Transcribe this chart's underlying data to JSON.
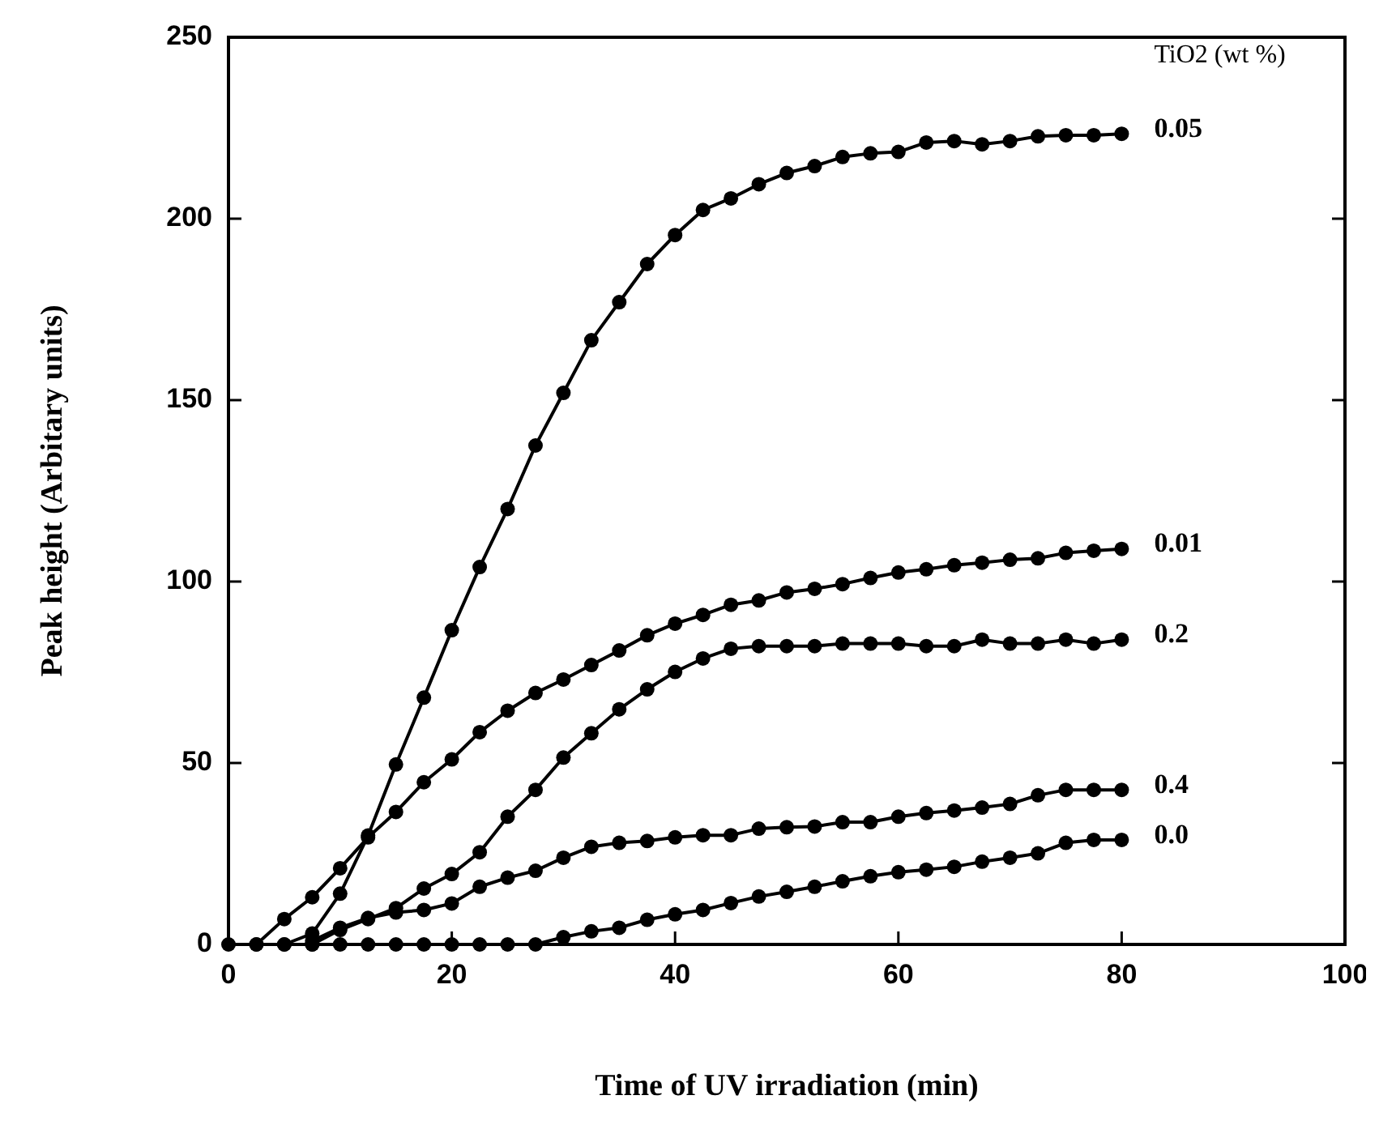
{
  "chart_data": {
    "type": "line",
    "xlabel": "Time of UV irradiation (min)",
    "ylabel": "Peak height (Arbitary units)",
    "legend_title": "TiO2 (wt %)",
    "xlim": [
      0,
      100
    ],
    "ylim": [
      0,
      250
    ],
    "xticks": [
      0,
      20,
      40,
      60,
      80,
      100
    ],
    "yticks": [
      0,
      50,
      100,
      150,
      200,
      250
    ],
    "marker": "circle",
    "line_style": "solid",
    "grid": false,
    "series": [
      {
        "name": "0.05",
        "color": "#000000",
        "x": [
          5,
          7.5,
          10,
          12.5,
          15,
          17.5,
          20,
          22.5,
          25,
          27.5,
          30,
          32.5,
          35,
          37.5,
          40,
          42.5,
          45,
          47.5,
          50,
          52.5,
          55,
          57.5,
          60,
          62.5,
          65,
          67.5,
          70,
          72.5,
          75,
          77.5,
          80
        ],
        "values": [
          0,
          3,
          14,
          30,
          49.6,
          68,
          86.6,
          104,
          120,
          137.5,
          152,
          166.5,
          177,
          187.5,
          195.5,
          202.4,
          205.6,
          209.5,
          212.6,
          214.5,
          217,
          218,
          218.4,
          221,
          221.4,
          220.5,
          221.4,
          222.7,
          223,
          223,
          223.4
        ]
      },
      {
        "name": "0.01",
        "color": "#000000",
        "x": [
          2.5,
          5,
          7.5,
          10,
          12.5,
          15,
          17.5,
          20,
          22.5,
          25,
          27.5,
          30,
          32.5,
          35,
          37.5,
          40,
          42.5,
          45,
          47.5,
          50,
          52.5,
          55,
          57.5,
          60,
          62.5,
          65,
          67.5,
          70,
          72.5,
          75,
          77.5,
          80
        ],
        "values": [
          0,
          7,
          13,
          21,
          29.5,
          36.5,
          44.7,
          51,
          58.5,
          64.4,
          69.3,
          73,
          77,
          81,
          85.2,
          88.4,
          90.8,
          93.6,
          94.8,
          97,
          98,
          99.3,
          101,
          102.5,
          103.4,
          104.5,
          105.2,
          106,
          106.4,
          107.9,
          108.5,
          109
        ]
      },
      {
        "name": "0.2",
        "color": "#000000",
        "x": [
          7.5,
          10,
          12.5,
          15,
          17.5,
          20,
          22.5,
          25,
          27.5,
          30,
          32.5,
          35,
          37.5,
          40,
          42.5,
          45,
          47.5,
          50,
          52.5,
          55,
          57.5,
          60,
          62.5,
          65,
          67.5,
          70,
          72.5,
          75,
          77.5,
          80
        ],
        "values": [
          0,
          4,
          7,
          10,
          15.4,
          19.4,
          25.4,
          35.2,
          42.6,
          51.5,
          58.2,
          64.8,
          70.3,
          75.1,
          78.8,
          81.5,
          82.2,
          82.2,
          82.2,
          82.9,
          82.9,
          82.9,
          82.2,
          82.2,
          84,
          82.9,
          82.9,
          84,
          82.9,
          84
        ]
      },
      {
        "name": "0.4",
        "color": "#000000",
        "x": [
          7.5,
          10,
          12.5,
          15,
          17.5,
          20,
          22.5,
          25,
          27.5,
          30,
          32.5,
          35,
          37.5,
          40,
          42.5,
          45,
          47.5,
          50,
          52.5,
          55,
          57.5,
          60,
          62.5,
          65,
          67.5,
          70,
          72.5,
          75,
          77.5,
          80
        ],
        "values": [
          1,
          4.6,
          7.3,
          8.8,
          9.5,
          11.3,
          15.9,
          18.4,
          20.3,
          23.9,
          26.9,
          28,
          28.5,
          29.5,
          30.1,
          30.1,
          31.9,
          32.3,
          32.5,
          33.7,
          33.7,
          35.2,
          36.2,
          36.9,
          37.7,
          38.7,
          41.1,
          42.6,
          42.6,
          42.6
        ]
      },
      {
        "name": "0.0",
        "color": "#000000",
        "x": [
          0,
          2.5,
          5,
          7.5,
          10,
          12.5,
          15,
          17.5,
          20,
          22.5,
          25,
          27.5,
          30,
          32.5,
          35,
          37.5,
          40,
          42.5,
          45,
          47.5,
          50,
          52.5,
          55,
          57.5,
          60,
          62.5,
          65,
          67.5,
          70,
          72.5,
          75,
          77.5,
          80
        ],
        "values": [
          0,
          0,
          0,
          0,
          0,
          0,
          0,
          0,
          0,
          0,
          0,
          0,
          2,
          3.6,
          4.6,
          6.8,
          8.3,
          9.5,
          11.4,
          13.2,
          14.5,
          15.9,
          17.4,
          18.8,
          19.9,
          20.6,
          21.4,
          22.8,
          23.9,
          25.1,
          28,
          28.8,
          28.8
        ]
      }
    ]
  }
}
